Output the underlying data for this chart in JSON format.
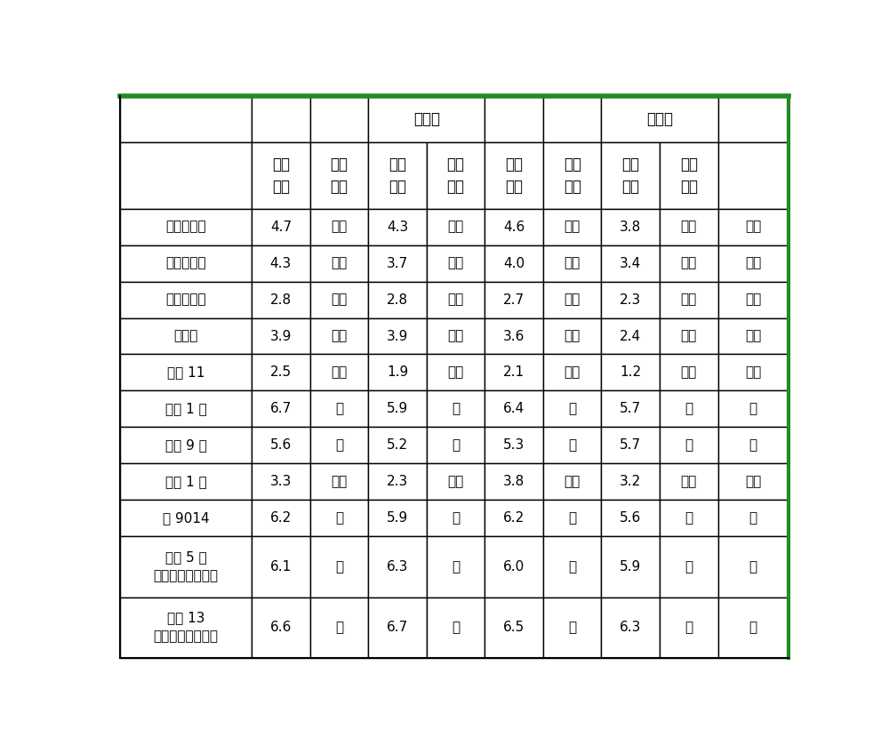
{
  "border_top_color": "#228B22",
  "border_right_color": "#228B22",
  "inner_line_color": "#000000",
  "bg_color": "#ffffff",
  "row_names": [
    "鄙阳黑芷鸻",
    "都昌黑芷鸻",
    "丰城灰芷鸻",
    "金黄鸻",
    "豫芷 11",
    "广湛 1 号",
    "赣芷 9 号",
    "亮芷 1 号",
    "冪 9014",
    "赣芷 5 号\n（感病对照品种）",
    "中芷 13\n（感病对照品种）"
  ],
  "data": [
    [
      "4.7",
      "中感",
      "4.3",
      "中感",
      "4.6",
      "中感",
      "3.8",
      "中感",
      "中感"
    ],
    [
      "4.3",
      "中感",
      "3.7",
      "中感",
      "4.0",
      "中感",
      "3.4",
      "中感",
      "中感"
    ],
    [
      "2.8",
      "中抗",
      "2.8",
      "中抗",
      "2.7",
      "中抗",
      "2.3",
      "中抗",
      "中抗"
    ],
    [
      "3.9",
      "中感",
      "3.9",
      "中感",
      "3.6",
      "中感",
      "2.4",
      "中抗",
      "中感"
    ],
    [
      "2.5",
      "中抗",
      "1.9",
      "中抗",
      "2.1",
      "中抗",
      "1.2",
      "中抗",
      "中抗"
    ],
    [
      "6.7",
      "感",
      "5.9",
      "感",
      "6.4",
      "感",
      "5.7",
      "感",
      "感"
    ],
    [
      "5.6",
      "感",
      "5.2",
      "感",
      "5.3",
      "感",
      "5.7",
      "感",
      "感"
    ],
    [
      "3.3",
      "中感",
      "2.3",
      "中抗",
      "3.8",
      "中感",
      "3.2",
      "中感",
      "中感"
    ],
    [
      "6.2",
      "感",
      "5.9",
      "感",
      "6.2",
      "感",
      "5.6",
      "感",
      "感"
    ],
    [
      "6.1",
      "感",
      "6.3",
      "感",
      "6.0",
      "感",
      "5.9",
      "感",
      "感"
    ],
    [
      "6.6",
      "感",
      "6.7",
      "感",
      "6.5",
      "感",
      "6.3",
      "感",
      "感"
    ]
  ],
  "header1_merged_label": "术规范",
  "header2_labels": [
    "平均\n病级",
    "抗性\n表型",
    "平均\n病级",
    "抗性\n表型",
    "平均\n病级",
    "抗性\n表型",
    "平均\n病级",
    "抗性\n表型"
  ],
  "col_widths_raw": [
    185,
    82,
    82,
    82,
    82,
    82,
    82,
    82,
    82,
    99
  ],
  "row_heights_raw": [
    75,
    110,
    60,
    60,
    60,
    60,
    60,
    60,
    60,
    60,
    60,
    100,
    100
  ],
  "fontsize_header": 12,
  "fontsize_cell": 11,
  "fontsize_rowname": 11
}
